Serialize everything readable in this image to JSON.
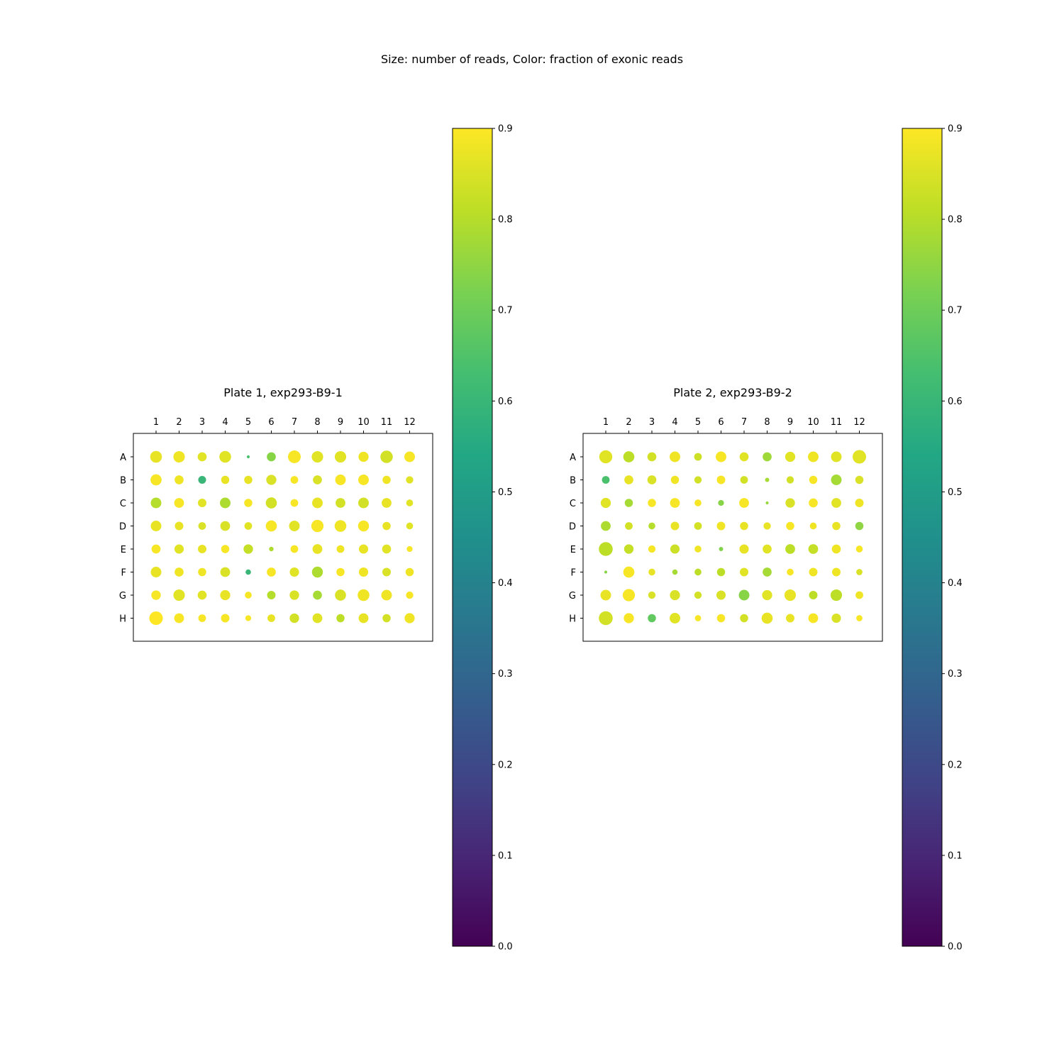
{
  "chart_data": {
    "type": "scatter",
    "title": "Size: number of reads, Color: fraction of exonic reads",
    "size_encoding": "number of reads",
    "color_encoding": "fraction of exonic reads",
    "colormap": "viridis",
    "color_range": [
      0.0,
      0.9
    ],
    "colorbar_ticks": [
      "0.0",
      "0.1",
      "0.2",
      "0.3",
      "0.4",
      "0.5",
      "0.6",
      "0.7",
      "0.8",
      "0.9"
    ],
    "columns": [
      "1",
      "2",
      "3",
      "4",
      "5",
      "6",
      "7",
      "8",
      "9",
      "10",
      "11",
      "12"
    ],
    "rows": [
      "A",
      "B",
      "C",
      "D",
      "E",
      "F",
      "G",
      "H"
    ],
    "plates": [
      {
        "title": "Plate 1, exp293-B9-1",
        "size": [
          [
            0.72,
            0.7,
            0.55,
            0.72,
            0.18,
            0.55,
            0.78,
            0.7,
            0.7,
            0.62,
            0.76,
            0.65
          ],
          [
            0.68,
            0.55,
            0.48,
            0.5,
            0.5,
            0.62,
            0.47,
            0.55,
            0.65,
            0.65,
            0.5,
            0.45
          ],
          [
            0.65,
            0.6,
            0.52,
            0.65,
            0.5,
            0.68,
            0.47,
            0.65,
            0.6,
            0.65,
            0.6,
            0.42
          ],
          [
            0.65,
            0.52,
            0.47,
            0.6,
            0.47,
            0.68,
            0.65,
            0.75,
            0.72,
            0.67,
            0.5,
            0.42
          ],
          [
            0.55,
            0.57,
            0.52,
            0.5,
            0.58,
            0.28,
            0.47,
            0.6,
            0.47,
            0.57,
            0.55,
            0.36
          ],
          [
            0.65,
            0.55,
            0.5,
            0.6,
            0.33,
            0.55,
            0.57,
            0.67,
            0.5,
            0.57,
            0.52,
            0.5
          ],
          [
            0.58,
            0.7,
            0.55,
            0.62,
            0.42,
            0.52,
            0.58,
            0.55,
            0.68,
            0.72,
            0.65,
            0.45
          ],
          [
            0.83,
            0.6,
            0.47,
            0.52,
            0.36,
            0.47,
            0.58,
            0.6,
            0.5,
            0.6,
            0.5,
            0.62
          ]
        ],
        "fraction": [
          [
            0.87,
            0.88,
            0.86,
            0.86,
            0.64,
            0.74,
            0.89,
            0.86,
            0.86,
            0.88,
            0.84,
            0.89
          ],
          [
            0.89,
            0.88,
            0.6,
            0.87,
            0.87,
            0.85,
            0.89,
            0.85,
            0.89,
            0.89,
            0.88,
            0.86
          ],
          [
            0.8,
            0.89,
            0.86,
            0.79,
            0.89,
            0.84,
            0.89,
            0.87,
            0.84,
            0.84,
            0.87,
            0.86
          ],
          [
            0.87,
            0.87,
            0.85,
            0.85,
            0.86,
            0.89,
            0.86,
            0.89,
            0.88,
            0.89,
            0.87,
            0.86
          ],
          [
            0.89,
            0.86,
            0.87,
            0.89,
            0.82,
            0.79,
            0.89,
            0.87,
            0.88,
            0.87,
            0.86,
            0.89
          ],
          [
            0.87,
            0.88,
            0.88,
            0.85,
            0.6,
            0.89,
            0.86,
            0.79,
            0.89,
            0.88,
            0.85,
            0.88
          ],
          [
            0.89,
            0.86,
            0.86,
            0.87,
            0.89,
            0.8,
            0.85,
            0.78,
            0.85,
            0.88,
            0.88,
            0.89
          ],
          [
            0.9,
            0.89,
            0.89,
            0.89,
            0.89,
            0.87,
            0.84,
            0.86,
            0.81,
            0.87,
            0.84,
            0.88
          ]
        ]
      },
      {
        "title": "Plate 2, exp293-B9-2",
        "size": [
          [
            0.8,
            0.68,
            0.55,
            0.65,
            0.47,
            0.65,
            0.55,
            0.55,
            0.62,
            0.65,
            0.65,
            0.83
          ],
          [
            0.47,
            0.55,
            0.55,
            0.5,
            0.45,
            0.52,
            0.47,
            0.26,
            0.45,
            0.5,
            0.65,
            0.5
          ],
          [
            0.62,
            0.5,
            0.5,
            0.6,
            0.42,
            0.36,
            0.6,
            0.18,
            0.58,
            0.55,
            0.6,
            0.52
          ],
          [
            0.6,
            0.47,
            0.42,
            0.52,
            0.47,
            0.52,
            0.5,
            0.45,
            0.5,
            0.42,
            0.5,
            0.5
          ],
          [
            0.85,
            0.58,
            0.45,
            0.57,
            0.42,
            0.26,
            0.57,
            0.55,
            0.6,
            0.6,
            0.55,
            0.42
          ],
          [
            0.18,
            0.68,
            0.42,
            0.33,
            0.42,
            0.5,
            0.52,
            0.55,
            0.42,
            0.52,
            0.52,
            0.38
          ],
          [
            0.65,
            0.75,
            0.45,
            0.62,
            0.45,
            0.57,
            0.65,
            0.62,
            0.7,
            0.52,
            0.7,
            0.47
          ],
          [
            0.85,
            0.62,
            0.5,
            0.65,
            0.38,
            0.5,
            0.5,
            0.68,
            0.52,
            0.6,
            0.57,
            0.38
          ]
        ],
        "fraction": [
          [
            0.86,
            0.81,
            0.84,
            0.88,
            0.83,
            0.89,
            0.86,
            0.77,
            0.86,
            0.88,
            0.86,
            0.86
          ],
          [
            0.64,
            0.87,
            0.85,
            0.88,
            0.84,
            0.89,
            0.84,
            0.78,
            0.84,
            0.89,
            0.78,
            0.85
          ],
          [
            0.86,
            0.78,
            0.89,
            0.89,
            0.89,
            0.74,
            0.89,
            0.76,
            0.85,
            0.89,
            0.86,
            0.88
          ],
          [
            0.79,
            0.84,
            0.8,
            0.87,
            0.84,
            0.88,
            0.87,
            0.87,
            0.89,
            0.88,
            0.87,
            0.75
          ],
          [
            0.81,
            0.82,
            0.89,
            0.83,
            0.88,
            0.73,
            0.87,
            0.86,
            0.81,
            0.82,
            0.88,
            0.89
          ],
          [
            0.74,
            0.89,
            0.87,
            0.78,
            0.81,
            0.81,
            0.86,
            0.78,
            0.89,
            0.88,
            0.88,
            0.85
          ],
          [
            0.87,
            0.89,
            0.85,
            0.85,
            0.84,
            0.85,
            0.74,
            0.86,
            0.87,
            0.81,
            0.81,
            0.88
          ],
          [
            0.84,
            0.89,
            0.68,
            0.86,
            0.89,
            0.89,
            0.84,
            0.87,
            0.87,
            0.89,
            0.85,
            0.89
          ]
        ]
      }
    ]
  }
}
